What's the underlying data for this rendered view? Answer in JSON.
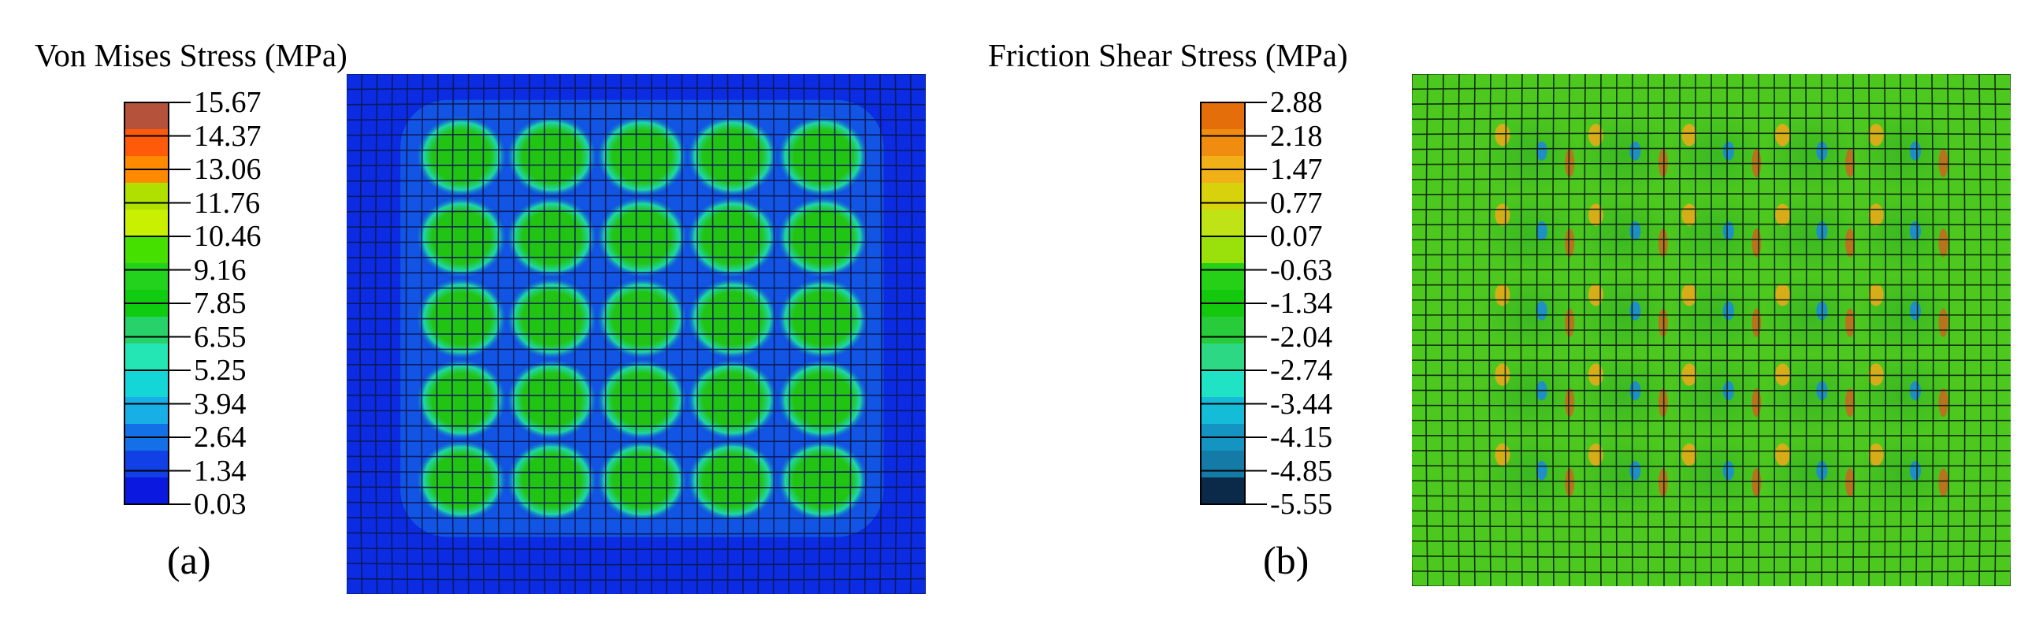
{
  "panels": [
    {
      "id": "a",
      "title": "Von Mises Stress (MPa)",
      "sublabel": "(a)",
      "legend": {
        "ticks": [
          "15.67",
          "14.37",
          "13.06",
          "11.76",
          "10.46",
          "9.16",
          "7.85",
          "6.55",
          "5.25",
          "3.94",
          "2.64",
          "1.34",
          "0.03"
        ],
        "bands": [
          "#b5523b",
          "#ff5a0a",
          "#ff8a00",
          "#b0e000",
          "#c8f000",
          "#46e000",
          "#22d21c",
          "#10cc10",
          "#28d26a",
          "#24e6b4",
          "#14d6d6",
          "#18aee6",
          "#1470e6",
          "#1040e6",
          "#0a18e0"
        ]
      },
      "field": {
        "background": "#0b2ce2",
        "cell_fill": "#22c414",
        "cell_edge": "#1ed6a8",
        "grid_color": "#0a1850",
        "rows": 5,
        "cols": 5
      }
    },
    {
      "id": "b",
      "title": "Friction Shear Stress (MPa)",
      "sublabel": "(b)",
      "legend": {
        "ticks": [
          "2.88",
          "2.18",
          "1.47",
          "0.77",
          "0.07",
          "-0.63",
          "-1.34",
          "-2.04",
          "-2.74",
          "-3.44",
          "-4.15",
          "-4.85",
          "-5.55"
        ],
        "bands": [
          "#e46e0a",
          "#f08c10",
          "#f2b018",
          "#d8d20c",
          "#bfe314",
          "#9ae00a",
          "#26d016",
          "#14c80e",
          "#28cc3a",
          "#2cd884",
          "#20e2c4",
          "#14bcd8",
          "#1494c2",
          "#147aa6",
          "#0b2a4a"
        ]
      },
      "field": {
        "background": "#4cc81e",
        "cell_fill": "#3ab822",
        "hot_color": "#f0a818",
        "cold_color": "#1c8ad8",
        "grid_color": "#0a1e0a",
        "rows": 5,
        "cols": 5
      }
    }
  ]
}
